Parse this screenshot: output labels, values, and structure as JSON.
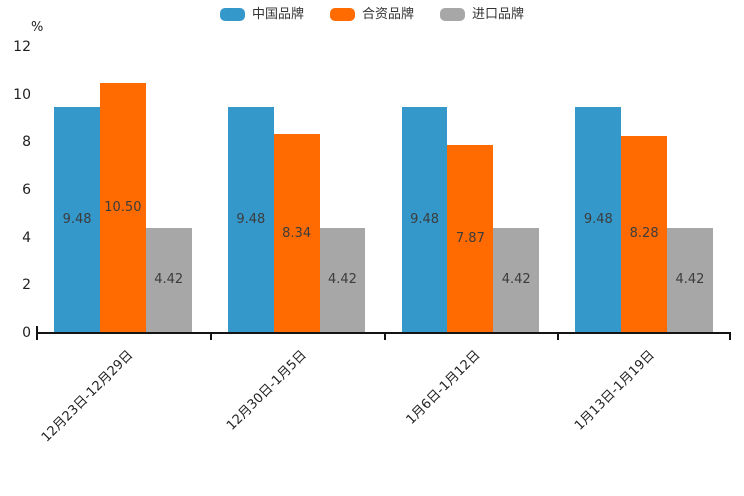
{
  "chart_data": {
    "type": "bar",
    "title": "",
    "ylabel": "%",
    "xlabel": "",
    "ylim": [
      0,
      12
    ],
    "yticks": [
      12,
      10,
      8,
      6,
      4,
      2,
      0
    ],
    "grid": false,
    "legend_position": "top",
    "categories": [
      "12月23日-12月29日",
      "12月30日-1月5日",
      "1月6日-1月12日",
      "1月13日-1月19日"
    ],
    "series": [
      {
        "name": "中国品牌",
        "color": "#3498CB",
        "values": [
          9.48,
          9.48,
          9.48,
          9.48
        ]
      },
      {
        "name": "合资品牌",
        "color": "#FF6B00",
        "values": [
          10.5,
          8.34,
          7.87,
          8.28
        ]
      },
      {
        "name": "进口品牌",
        "color": "#A7A7A7",
        "values": [
          4.42,
          4.42,
          4.42,
          4.42
        ]
      }
    ]
  },
  "colors": {
    "axis": "#141414",
    "value_label_text": "#3C3C3C",
    "tick_label_text": "#1F1F1F",
    "legend_text": "#333333"
  }
}
